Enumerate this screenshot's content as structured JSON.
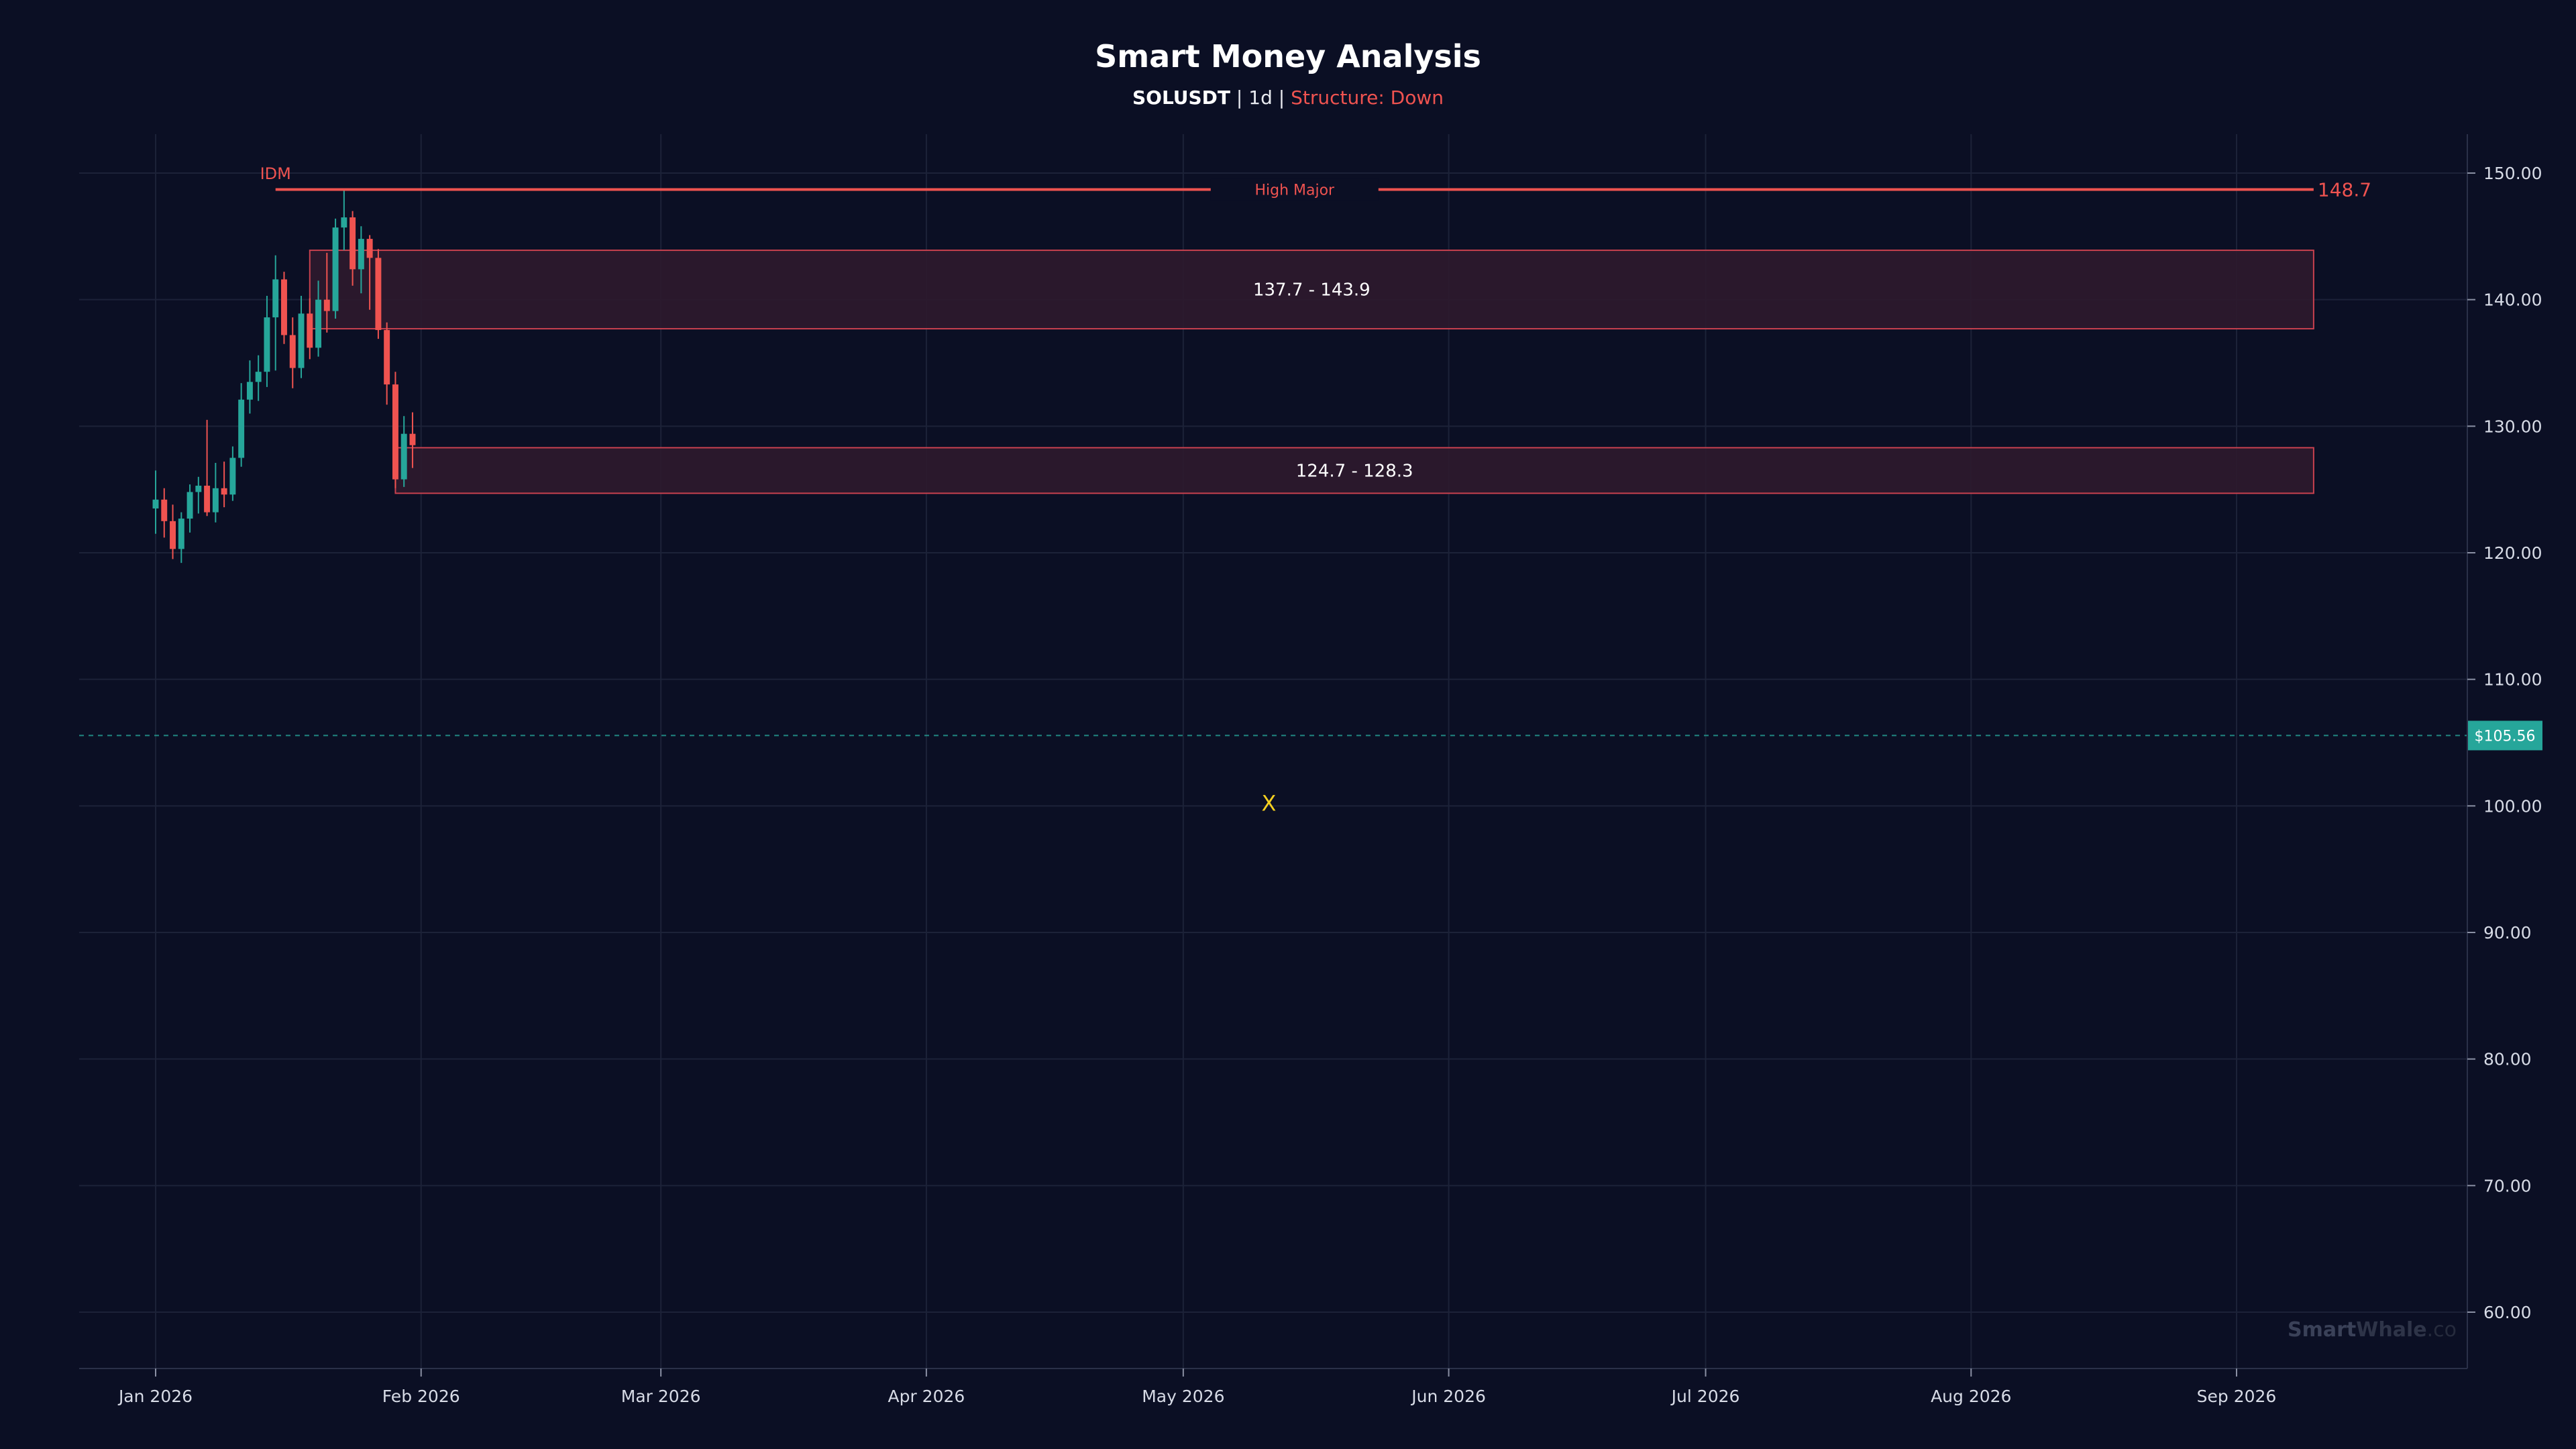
{
  "title": "Smart Money Analysis",
  "subtitle": {
    "symbol": "SOLUSDT",
    "sep1": " | ",
    "timeframe": "1d",
    "sep2": " | ",
    "structure": "Structure: Down"
  },
  "watermark": {
    "part1": "Smart",
    "part2": "Whale",
    "part3": ".co"
  },
  "colors": {
    "background": "#0b0f24",
    "up": "#26a69a",
    "down": "#ef5350",
    "grid": "#1c2238",
    "zone_fill": "#2e1a2e",
    "zone_stroke": "#c8414f",
    "price_tag": "#26a69a",
    "marker": "#f5d020"
  },
  "chart_data": {
    "type": "candlestick",
    "symbol": "SOLUSDT",
    "interval": "1d",
    "y_range": [
      55,
      152
    ],
    "y_ticks": [
      "60.00",
      "70.00",
      "80.00",
      "90.00",
      "100.00",
      "110.00",
      "120.00",
      "130.00",
      "140.00",
      "150.00"
    ],
    "x_ticks": [
      {
        "date": "2026-01-01",
        "label": "Jan 2026"
      },
      {
        "date": "2026-02-01",
        "label": "Feb 2026"
      },
      {
        "date": "2026-03-01",
        "label": "Mar 2026"
      },
      {
        "date": "2026-04-01",
        "label": "Apr 2026"
      },
      {
        "date": "2026-05-01",
        "label": "May 2026"
      },
      {
        "date": "2026-06-01",
        "label": "Jun 2026"
      },
      {
        "date": "2026-07-01",
        "label": "Jul 2026"
      },
      {
        "date": "2026-08-01",
        "label": "Aug 2026"
      },
      {
        "date": "2026-09-01",
        "label": "Sep 2026"
      }
    ],
    "last_price": 105.56,
    "last_price_label": "$105.56",
    "high_major": {
      "price": 148.7,
      "date_from": "2026-01-15",
      "label": "High Major",
      "value_label": "148.7",
      "marker_label": "IDM"
    },
    "supply_zones": [
      {
        "low": 137.7,
        "high": 143.9,
        "date_from": "2026-01-19",
        "label": "137.7 - 143.9"
      },
      {
        "low": 124.7,
        "high": 128.3,
        "date_from": "2026-01-29",
        "label": "124.7 - 128.3"
      }
    ],
    "zone_end_date": "2026-09-10",
    "marker": {
      "date": "2026-05-11",
      "price": 100.2,
      "label": "X"
    },
    "ohlc_columns": [
      "date",
      "open",
      "high",
      "low",
      "close"
    ],
    "candles": [
      [
        "2026-01-01",
        123.5,
        126.5,
        121.5,
        124.2
      ],
      [
        "2026-01-02",
        124.2,
        125.1,
        121.2,
        122.5
      ],
      [
        "2026-01-03",
        122.5,
        123.8,
        119.5,
        120.3
      ],
      [
        "2026-01-04",
        120.3,
        123.2,
        119.2,
        122.7
      ],
      [
        "2026-01-05",
        122.7,
        125.4,
        121.6,
        124.8
      ],
      [
        "2026-01-06",
        124.8,
        126.0,
        123.1,
        125.3
      ],
      [
        "2026-01-07",
        125.3,
        130.5,
        122.9,
        123.2
      ],
      [
        "2026-01-08",
        123.2,
        127.1,
        122.4,
        125.1
      ],
      [
        "2026-01-09",
        125.1,
        127.2,
        123.6,
        124.6
      ],
      [
        "2026-01-10",
        124.6,
        128.4,
        124.1,
        127.5
      ],
      [
        "2026-01-11",
        127.5,
        133.4,
        126.8,
        132.1
      ],
      [
        "2026-01-12",
        132.1,
        135.2,
        131.0,
        133.5
      ],
      [
        "2026-01-13",
        133.5,
        135.6,
        132.0,
        134.3
      ],
      [
        "2026-01-14",
        134.3,
        140.3,
        133.1,
        138.6
      ],
      [
        "2026-01-15",
        138.6,
        143.5,
        134.4,
        141.6
      ],
      [
        "2026-01-16",
        141.6,
        142.2,
        136.5,
        137.2
      ],
      [
        "2026-01-17",
        137.2,
        138.6,
        133.0,
        134.6
      ],
      [
        "2026-01-18",
        134.6,
        140.3,
        133.8,
        138.9
      ],
      [
        "2026-01-19",
        138.9,
        140.1,
        135.3,
        136.2
      ],
      [
        "2026-01-20",
        136.2,
        141.5,
        135.5,
        140.0
      ],
      [
        "2026-01-21",
        140.0,
        143.7,
        137.4,
        139.1
      ],
      [
        "2026-01-22",
        139.1,
        146.4,
        138.5,
        145.7
      ],
      [
        "2026-01-23",
        145.7,
        148.7,
        143.9,
        146.5
      ],
      [
        "2026-01-24",
        146.5,
        147.0,
        141.1,
        142.4
      ],
      [
        "2026-01-25",
        142.4,
        145.8,
        140.5,
        144.8
      ],
      [
        "2026-01-26",
        144.8,
        145.1,
        139.2,
        143.3
      ],
      [
        "2026-01-27",
        143.3,
        144.0,
        136.9,
        137.6
      ],
      [
        "2026-01-28",
        137.6,
        138.2,
        131.7,
        133.3
      ],
      [
        "2026-01-29",
        133.3,
        134.3,
        125.1,
        125.8
      ],
      [
        "2026-01-30",
        125.8,
        130.8,
        125.2,
        129.4
      ],
      [
        "2026-01-31",
        129.4,
        131.1,
        126.7,
        128.5
      ]
    ]
  }
}
